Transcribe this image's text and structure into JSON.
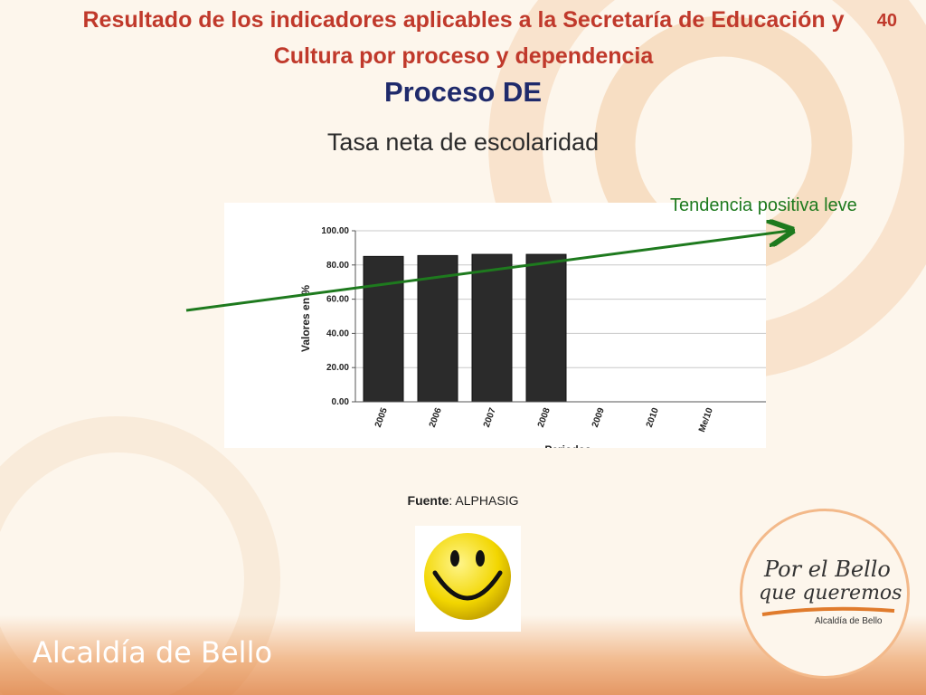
{
  "slide": {
    "number": "40",
    "title": "Resultado de los indicadores aplicables a la Secretaría de Educación y Cultura  por proceso y dependencia",
    "process_title": "Proceso DE",
    "subtitle": "Tasa neta de escolaridad",
    "trend_label": "Tendencia positiva leve",
    "source_label": "Fuente",
    "source_value": ": ALPHASIG",
    "footer": "Alcaldía de Bello"
  },
  "logo": {
    "line1": "Por el Bello",
    "line2": "que queremos",
    "line3": "Alcaldía de Bello"
  },
  "colors": {
    "title": "#c0392b",
    "process_title": "#1f2a6b",
    "trend": "#1e7a1e",
    "bars": "#2b2b2b"
  },
  "chart_data": {
    "type": "bar",
    "categories": [
      "2005",
      "2006",
      "2007",
      "2008",
      "2009",
      "2010",
      "Me/10"
    ],
    "values": [
      85,
      85.5,
      86.2,
      86.2,
      null,
      null,
      null
    ],
    "ylabel": "Valores en %",
    "xlabel": "Periodos",
    "ylim": [
      0,
      100
    ],
    "yticks": [
      "0.00",
      "20.00",
      "40.00",
      "60.00",
      "80.00",
      "100.00"
    ],
    "grid": true
  }
}
